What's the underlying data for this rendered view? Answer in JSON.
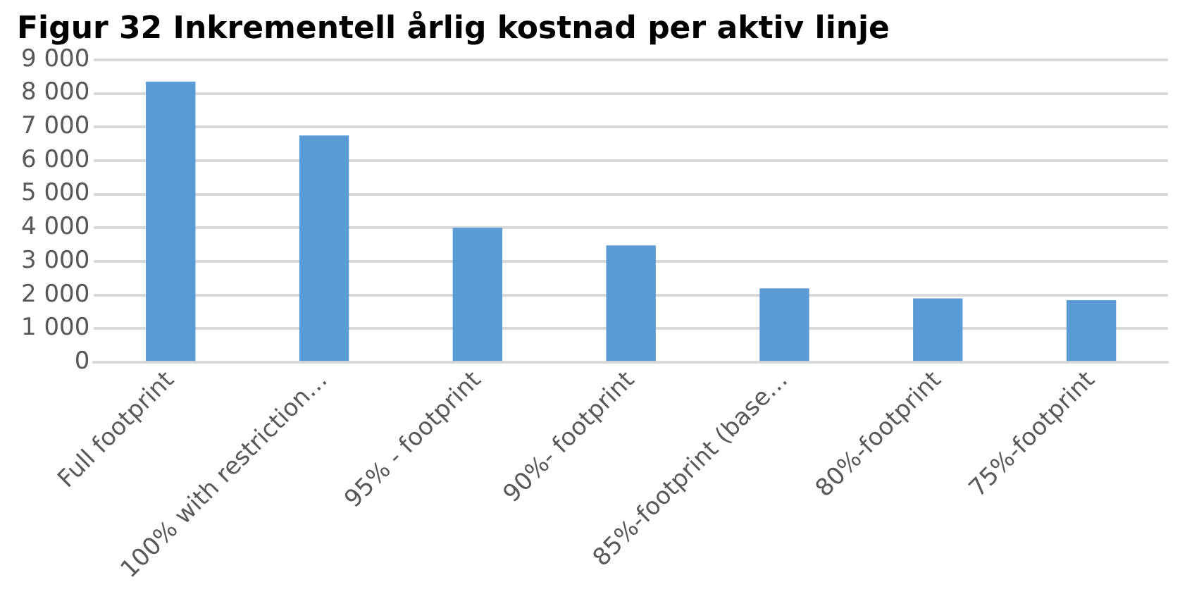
{
  "chart_data": {
    "type": "bar",
    "title": "Figur 32 Inkrementell årlig kostnad per aktiv linje",
    "categories": [
      "Full footprint",
      "100% with restriction…",
      "95% - footprint",
      "90%- footprint",
      "85%-footprint (base…",
      "80%-footprint",
      "75%-footprint"
    ],
    "values": [
      8350,
      6750,
      4000,
      3480,
      2200,
      1900,
      1850
    ],
    "color": "#5b9bd5",
    "ylim": [
      0,
      9000
    ],
    "yticks": [
      {
        "value": 0,
        "label": "0"
      },
      {
        "value": 1000,
        "label": "1 000"
      },
      {
        "value": 2000,
        "label": "2 000"
      },
      {
        "value": 3000,
        "label": "3 000"
      },
      {
        "value": 4000,
        "label": "4 000"
      },
      {
        "value": 5000,
        "label": "5 000"
      },
      {
        "value": 6000,
        "label": "6 000"
      },
      {
        "value": 7000,
        "label": "7 000"
      },
      {
        "value": 8000,
        "label": "8 000"
      },
      {
        "value": 9000,
        "label": "9 000"
      }
    ],
    "grid": "y",
    "legend": false
  }
}
